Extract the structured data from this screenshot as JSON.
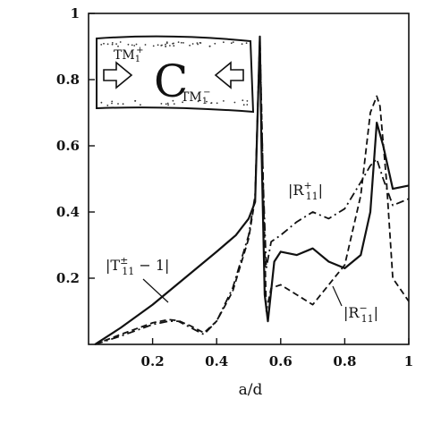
{
  "chart_data": {
    "type": "line",
    "xlabel": "a/d",
    "ylabel": "",
    "xlim": [
      0,
      1
    ],
    "ylim": [
      0,
      1
    ],
    "x_ticks": [
      "0.2",
      "0.4",
      "0.6",
      "0.8",
      "1"
    ],
    "y_ticks": [
      "0.2",
      "0.4",
      "0.6",
      "0.8",
      "1"
    ],
    "grid": false,
    "legend": "none",
    "series": [
      {
        "name": "|T±11 − 1|",
        "style": "solid",
        "x": [
          0.02,
          0.1,
          0.2,
          0.3,
          0.4,
          0.46,
          0.5,
          0.52,
          0.535,
          0.54,
          0.55,
          0.56,
          0.58,
          0.6,
          0.65,
          0.7,
          0.75,
          0.8,
          0.85,
          0.88,
          0.9,
          0.92,
          0.95,
          1.0
        ],
        "y": [
          0.0,
          0.05,
          0.12,
          0.2,
          0.28,
          0.33,
          0.38,
          0.43,
          0.93,
          0.6,
          0.15,
          0.07,
          0.25,
          0.28,
          0.27,
          0.29,
          0.25,
          0.23,
          0.27,
          0.4,
          0.67,
          0.6,
          0.47,
          0.48
        ]
      },
      {
        "name": "|R+11|",
        "style": "dashdot",
        "x": [
          0.02,
          0.1,
          0.2,
          0.25,
          0.28,
          0.32,
          0.36,
          0.4,
          0.45,
          0.5,
          0.52,
          0.535,
          0.545,
          0.555,
          0.57,
          0.6,
          0.65,
          0.7,
          0.75,
          0.8,
          0.85,
          0.88,
          0.9,
          0.92,
          0.95,
          1.0
        ],
        "y": [
          0.0,
          0.025,
          0.06,
          0.07,
          0.07,
          0.05,
          0.03,
          0.07,
          0.17,
          0.33,
          0.45,
          0.93,
          0.5,
          0.23,
          0.31,
          0.33,
          0.37,
          0.4,
          0.38,
          0.41,
          0.49,
          0.54,
          0.56,
          0.5,
          0.42,
          0.44
        ]
      },
      {
        "name": "|R−11|",
        "style": "dashed",
        "x": [
          0.02,
          0.1,
          0.2,
          0.25,
          0.28,
          0.32,
          0.36,
          0.4,
          0.45,
          0.5,
          0.52,
          0.535,
          0.545,
          0.555,
          0.57,
          0.6,
          0.65,
          0.7,
          0.75,
          0.8,
          0.85,
          0.88,
          0.9,
          0.91,
          0.93,
          0.95,
          1.0
        ],
        "y": [
          0.0,
          0.03,
          0.065,
          0.075,
          0.072,
          0.055,
          0.035,
          0.07,
          0.16,
          0.32,
          0.44,
          0.93,
          0.5,
          0.1,
          0.17,
          0.18,
          0.15,
          0.12,
          0.18,
          0.24,
          0.45,
          0.7,
          0.75,
          0.72,
          0.5,
          0.2,
          0.13
        ]
      }
    ],
    "annotations": [
      {
        "text": "|T±11 − 1|",
        "base": "|T",
        "sup": "±",
        "sub": "11",
        "tail": " − 1|"
      },
      {
        "text": "|R+11|",
        "base": "|R",
        "sup": "+",
        "sub": "11",
        "tail": "|"
      },
      {
        "text": "|R−11|",
        "base": "|R",
        "sup": "−",
        "sub": "11",
        "tail": "|"
      }
    ],
    "inset": {
      "left_mode": {
        "base": "TM",
        "sub": "1",
        "sup": "+"
      },
      "center_symbol": "C",
      "right_mode": {
        "base": "TM",
        "sub": "1",
        "sup": "−"
      }
    }
  }
}
